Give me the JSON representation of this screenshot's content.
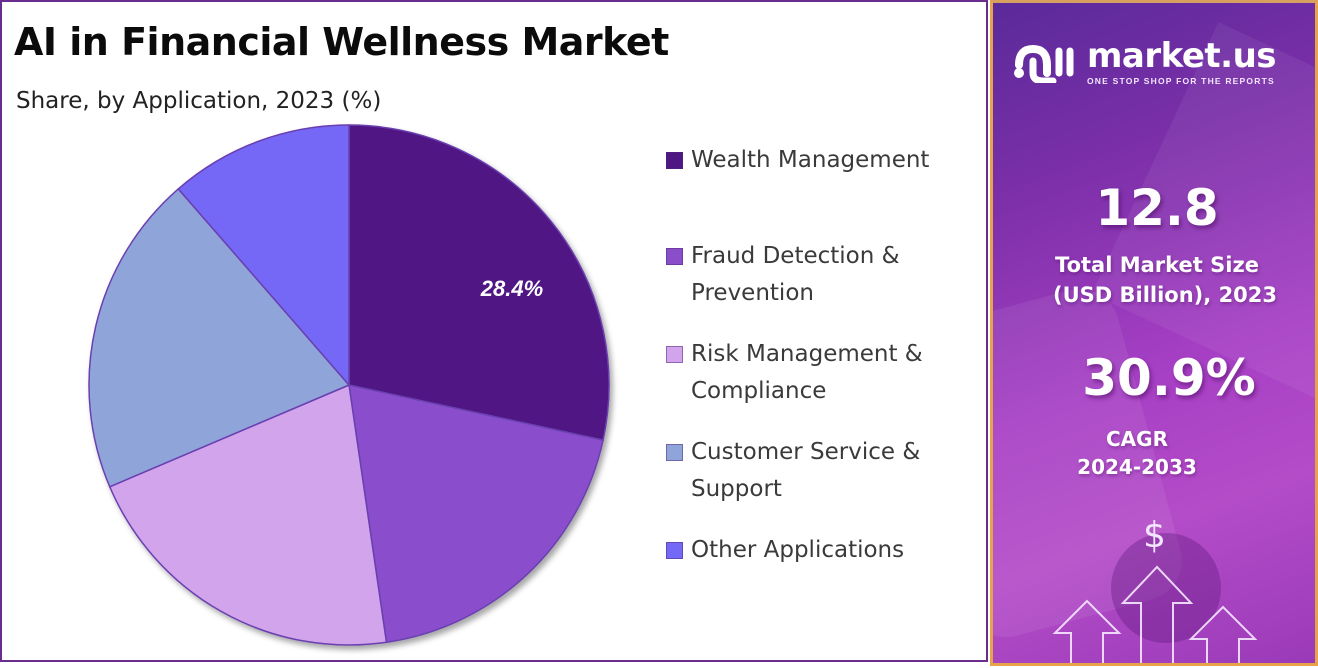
{
  "header": {
    "title": "AI in Financial Wellness Market",
    "subtitle": "Share, by Application, 2023 (%)"
  },
  "legend": [
    {
      "label_line1": "Wealth Management",
      "label_line2": "",
      "color": "#4f1784"
    },
    {
      "label_line1": "Fraud Detection &",
      "label_line2": "Prevention",
      "color": "#8a4ecb"
    },
    {
      "label_line1": "Risk Management &",
      "label_line2": "Compliance",
      "color": "#d1a4ec"
    },
    {
      "label_line1": "Customer Service &",
      "label_line2": "Support",
      "color": "#8fa5da"
    },
    {
      "label_line1": "Other Applications",
      "label_line2": "",
      "color": "#7468f7"
    }
  ],
  "pie_label": "28.4%",
  "sidebar": {
    "brand_name": "market.us",
    "brand_tagline": "ONE STOP SHOP FOR THE REPORTS",
    "market_size_value": "12.8",
    "market_size_label_line1": "Total Market Size",
    "market_size_label_line2": "(USD Billion), 2023",
    "cagr_value": "30.9%",
    "cagr_label_line1": "CAGR",
    "cagr_label_line2": "2024-2033",
    "dollar_symbol": "$"
  },
  "chart_data": {
    "type": "pie",
    "title": "AI in Financial Wellness Market",
    "subtitle": "Share, by Application, 2023 (%)",
    "categories": [
      "Wealth Management",
      "Fraud Detection & Prevention",
      "Risk Management & Compliance",
      "Customer Service & Support",
      "Other Applications"
    ],
    "values": [
      28.4,
      19.3,
      20.9,
      20.0,
      11.4
    ],
    "colors": [
      "#4f1784",
      "#8a4ecb",
      "#d1a4ec",
      "#8fa5da",
      "#7468f7"
    ],
    "labeled_values": {
      "Wealth Management": 28.4
    },
    "start_angle_deg": 0,
    "direction": "clockwise",
    "legend_position": "right"
  }
}
